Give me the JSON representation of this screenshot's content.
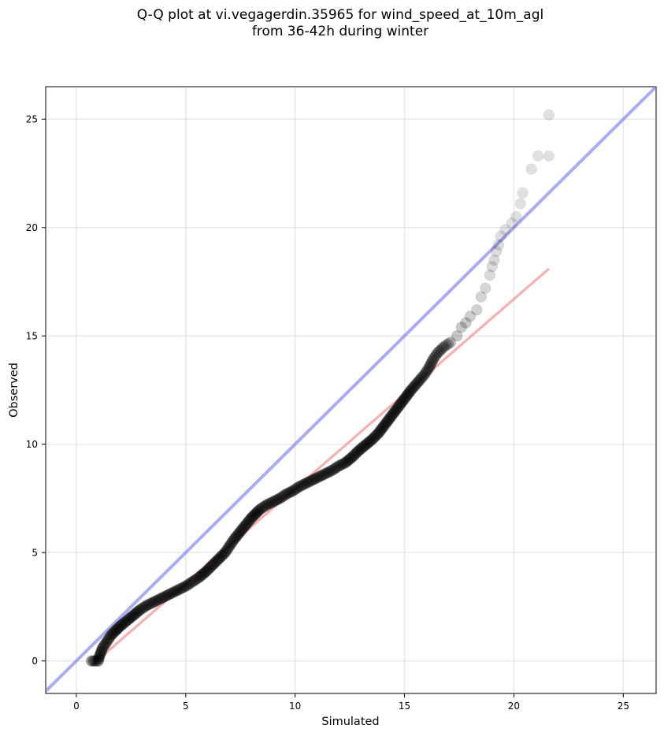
{
  "chart_data": {
    "type": "scatter",
    "title": "Q-Q plot at vi.vegagerdin.35965 for wind_speed_at_10m_agl\nfrom 36-42h during winter",
    "xlabel": "Simulated",
    "ylabel": "Observed",
    "xlim": [
      -1.4,
      26.5
    ],
    "ylim": [
      -1.5,
      26.5
    ],
    "xticks": [
      0,
      5,
      10,
      15,
      20,
      25
    ],
    "yticks": [
      0,
      5,
      10,
      15,
      20,
      25
    ],
    "grid": true,
    "series": [
      {
        "role": "quantile-points",
        "color": "#000000",
        "points": [
          [
            0.7,
            0.0
          ],
          [
            0.9,
            0.0
          ],
          [
            1.0,
            0.0
          ],
          [
            1.05,
            0.2
          ],
          [
            1.2,
            0.6
          ],
          [
            1.4,
            0.9
          ],
          [
            1.6,
            1.2
          ],
          [
            1.8,
            1.4
          ],
          [
            2.0,
            1.6
          ],
          [
            2.3,
            1.85
          ],
          [
            2.6,
            2.1
          ],
          [
            2.9,
            2.35
          ],
          [
            3.2,
            2.55
          ],
          [
            3.5,
            2.7
          ],
          [
            3.8,
            2.85
          ],
          [
            4.1,
            3.0
          ],
          [
            4.4,
            3.15
          ],
          [
            4.7,
            3.3
          ],
          [
            5.0,
            3.45
          ],
          [
            5.3,
            3.65
          ],
          [
            5.6,
            3.85
          ],
          [
            5.9,
            4.1
          ],
          [
            6.2,
            4.4
          ],
          [
            6.5,
            4.7
          ],
          [
            6.8,
            5.0
          ],
          [
            7.0,
            5.3
          ],
          [
            7.2,
            5.6
          ],
          [
            7.4,
            5.85
          ],
          [
            7.6,
            6.1
          ],
          [
            7.8,
            6.35
          ],
          [
            8.0,
            6.6
          ],
          [
            8.2,
            6.8
          ],
          [
            8.4,
            7.0
          ],
          [
            8.7,
            7.2
          ],
          [
            9.0,
            7.35
          ],
          [
            9.3,
            7.5
          ],
          [
            9.6,
            7.7
          ],
          [
            9.9,
            7.85
          ],
          [
            10.2,
            8.05
          ],
          [
            10.5,
            8.2
          ],
          [
            10.8,
            8.35
          ],
          [
            11.1,
            8.5
          ],
          [
            11.4,
            8.65
          ],
          [
            11.7,
            8.8
          ],
          [
            12.0,
            9.0
          ],
          [
            12.3,
            9.15
          ],
          [
            12.6,
            9.4
          ],
          [
            12.9,
            9.7
          ],
          [
            13.2,
            9.95
          ],
          [
            13.5,
            10.2
          ],
          [
            13.8,
            10.5
          ],
          [
            14.1,
            10.9
          ],
          [
            14.4,
            11.3
          ],
          [
            14.7,
            11.7
          ],
          [
            15.0,
            12.1
          ],
          [
            15.3,
            12.5
          ],
          [
            15.6,
            12.85
          ],
          [
            15.9,
            13.2
          ],
          [
            16.1,
            13.5
          ],
          [
            16.3,
            13.9
          ],
          [
            16.5,
            14.2
          ],
          [
            16.8,
            14.5
          ],
          [
            17.1,
            14.7
          ],
          [
            17.4,
            15.0
          ],
          [
            17.6,
            15.4
          ],
          [
            17.8,
            15.6
          ],
          [
            18.0,
            15.9
          ],
          [
            18.3,
            16.2
          ],
          [
            18.5,
            16.8
          ],
          [
            18.7,
            17.2
          ],
          [
            18.9,
            17.8
          ],
          [
            19.0,
            18.2
          ],
          [
            19.1,
            18.5
          ],
          [
            19.2,
            18.9
          ],
          [
            19.3,
            19.2
          ],
          [
            19.4,
            19.6
          ],
          [
            19.6,
            19.9
          ],
          [
            19.9,
            20.2
          ],
          [
            20.1,
            20.5
          ],
          [
            20.3,
            21.1
          ],
          [
            20.4,
            21.6
          ],
          [
            20.8,
            22.7
          ],
          [
            21.1,
            23.3
          ],
          [
            21.6,
            23.3
          ],
          [
            21.6,
            25.2
          ]
        ]
      },
      {
        "role": "identity-line",
        "color": "#7c7cf0",
        "points": [
          [
            -1.4,
            -1.4
          ],
          [
            26.5,
            26.5
          ]
        ]
      },
      {
        "role": "fit-line",
        "color": "#f07c7c",
        "points": [
          [
            0.7,
            -0.2
          ],
          [
            21.6,
            18.1
          ]
        ]
      }
    ]
  }
}
